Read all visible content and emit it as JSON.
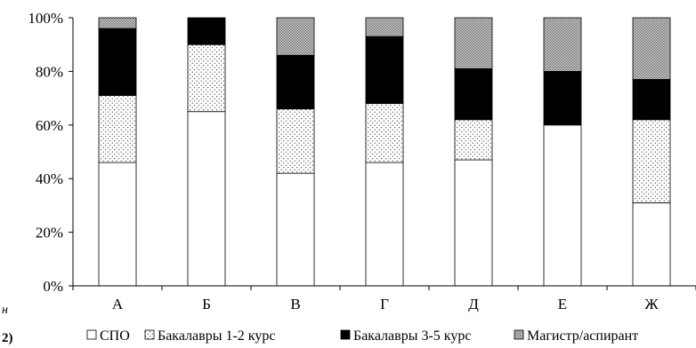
{
  "chart_data": {
    "type": "bar",
    "stacked": true,
    "percent": true,
    "categories": [
      "А",
      "Б",
      "В",
      "Г",
      "Д",
      "Е",
      "Ж"
    ],
    "series": [
      {
        "name": "СПО",
        "pattern": "white",
        "values": [
          46,
          65,
          42,
          46,
          47,
          60,
          31
        ]
      },
      {
        "name": "Бакалавры 1-2 курс",
        "pattern": "dots",
        "values": [
          25,
          25,
          24,
          22,
          15,
          0,
          31
        ]
      },
      {
        "name": "Бакалавры 3-5 курс",
        "pattern": "black",
        "values": [
          25,
          10,
          20,
          25,
          19,
          20,
          15
        ]
      },
      {
        "name": "Магистр/аспирант",
        "pattern": "crosshatch",
        "values": [
          4,
          0,
          14,
          7,
          19,
          20,
          23
        ]
      }
    ],
    "y_ticks": [
      "0%",
      "20%",
      "40%",
      "60%",
      "80%",
      "100%"
    ],
    "ylim": [
      0,
      100
    ],
    "legend_position": "bottom",
    "grid": false
  },
  "margin_text": {
    "left_fragment_1": "н",
    "left_fragment_2": "2)"
  }
}
